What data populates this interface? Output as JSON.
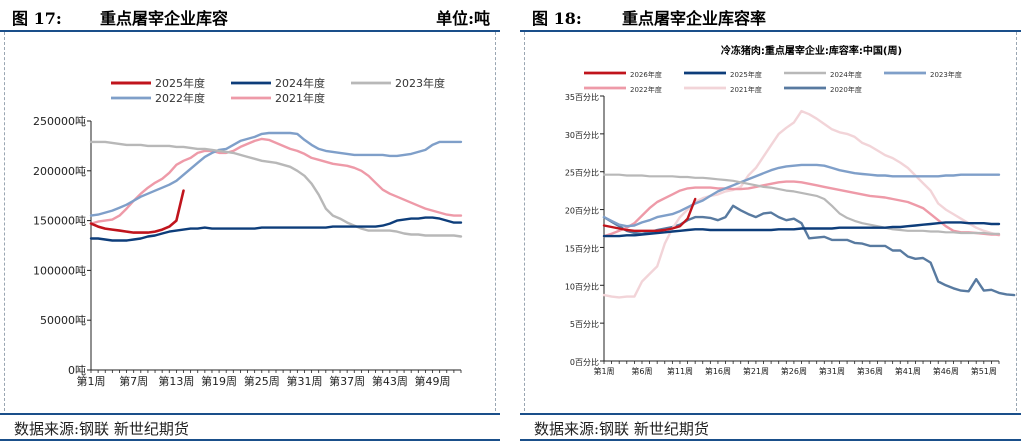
{
  "left": {
    "fig_no": "图 17:",
    "fig_title": "重点屠宰企业库容",
    "unit": "单位:吨",
    "source": "数据来源:钢联 新世纪期货"
  },
  "right": {
    "fig_no": "图 18:",
    "fig_title": "重点屠宰企业库容率",
    "source": "数据来源:钢联 新世纪期货"
  },
  "colors": {
    "header_rule": "#1a4f8a",
    "2026": "#c0141c",
    "2025_right": "#0d3d7a",
    "2024_right": "#b8b8b8",
    "2023_right": "#7f9fc9",
    "2022_right": "#ee9aa8",
    "2021_right": "#f2d4d8",
    "2020_right": "#587aa0",
    "2025_left": "#c0141c",
    "2024_left": "#0d3d7a",
    "2023_left": "#b8b8b8",
    "2022_left": "#7f9fc9",
    "2021_left": "#ee9aa8"
  },
  "chart_data": [
    {
      "type": "line",
      "title": "",
      "ylabel": "吨",
      "ylim": [
        0,
        250000
      ],
      "yticks": [
        0,
        50000,
        100000,
        150000,
        200000,
        250000
      ],
      "ytick_labels": [
        "0吨",
        "50000吨",
        "100000吨",
        "150000吨",
        "200000吨",
        "250000吨"
      ],
      "xlim": [
        1,
        53
      ],
      "xticks": [
        1,
        7,
        13,
        19,
        25,
        31,
        37,
        43,
        49
      ],
      "xtick_labels": [
        "第1周",
        "第7周",
        "第13周",
        "第19周",
        "第25周",
        "第31周",
        "第37周",
        "第43周",
        "第49周"
      ],
      "series": [
        {
          "name": "2025年度",
          "color_key": "2025_left",
          "width": 2.6,
          "start_week": 1,
          "values": [
            147000,
            144000,
            142000,
            141000,
            140000,
            139000,
            138000,
            138000,
            138000,
            139000,
            141000,
            144000,
            150000,
            180000
          ]
        },
        {
          "name": "2024年度",
          "color_key": "2024_left",
          "width": 2.4,
          "start_week": 1,
          "values": [
            132000,
            132000,
            131000,
            130000,
            130000,
            130000,
            131000,
            132000,
            134000,
            135000,
            137000,
            139000,
            140000,
            141000,
            142000,
            142000,
            143000,
            142000,
            142000,
            142000,
            142000,
            142000,
            142000,
            142000,
            143000,
            143000,
            143000,
            143000,
            143000,
            143000,
            143000,
            143000,
            143000,
            143000,
            144000,
            144000,
            144000,
            144000,
            144000,
            144000,
            144000,
            145000,
            147000,
            150000,
            151000,
            152000,
            152000,
            153000,
            153000,
            152000,
            150000,
            148000,
            148000
          ]
        },
        {
          "name": "2023年度",
          "color_key": "2023_left",
          "width": 2.4,
          "start_week": 1,
          "values": [
            229000,
            229000,
            229000,
            228000,
            227000,
            226000,
            226000,
            226000,
            225000,
            225000,
            225000,
            225000,
            224000,
            224000,
            223000,
            222000,
            222000,
            221000,
            220000,
            219000,
            218000,
            216000,
            214000,
            212000,
            210000,
            209000,
            208000,
            206000,
            204000,
            200000,
            195000,
            187000,
            176000,
            162000,
            155000,
            152000,
            148000,
            145000,
            142000,
            140000,
            140000,
            140000,
            140000,
            139000,
            137000,
            136000,
            136000,
            135000,
            135000,
            135000,
            135000,
            135000,
            134000
          ]
        },
        {
          "name": "2022年度",
          "color_key": "2022_left",
          "width": 2.4,
          "start_week": 1,
          "values": [
            155000,
            156000,
            158000,
            160000,
            163000,
            166000,
            170000,
            174000,
            177000,
            180000,
            183000,
            186000,
            190000,
            196000,
            202000,
            208000,
            214000,
            218000,
            221000,
            222000,
            226000,
            230000,
            232000,
            234000,
            237000,
            238000,
            238000,
            238000,
            238000,
            237000,
            231000,
            226000,
            222000,
            220000,
            219000,
            218000,
            217000,
            216000,
            216000,
            216000,
            216000,
            216000,
            215000,
            215000,
            216000,
            217000,
            219000,
            221000,
            226000,
            229000,
            229000,
            229000,
            229000
          ]
        },
        {
          "name": "2021年度",
          "color_key": "2021_left",
          "width": 2.4,
          "start_week": 1,
          "values": [
            147000,
            149000,
            150000,
            151000,
            155000,
            162000,
            170000,
            177000,
            183000,
            188000,
            192000,
            198000,
            206000,
            210000,
            213000,
            218000,
            220000,
            220000,
            218000,
            218000,
            220000,
            224000,
            227000,
            230000,
            232000,
            231000,
            228000,
            225000,
            222000,
            220000,
            217000,
            213000,
            211000,
            209000,
            207000,
            206000,
            205000,
            203000,
            200000,
            195000,
            188000,
            181000,
            177000,
            174000,
            171000,
            168000,
            165000,
            162000,
            160000,
            158000,
            156000,
            155000,
            155000
          ]
        }
      ],
      "legend": {
        "rows": [
          [
            "2025年度",
            "2024年度",
            "2023年度"
          ],
          [
            "2022年度",
            "2021年度"
          ]
        ],
        "placement": "top"
      }
    },
    {
      "type": "line",
      "title": "冷冻猪肉:重点屠宰企业:库容率:中国(周)",
      "ylabel": "百分比",
      "ylim": [
        0,
        35
      ],
      "yticks": [
        0,
        5,
        10,
        15,
        20,
        25,
        30,
        35
      ],
      "ytick_labels": [
        "0百分比",
        "5百分比",
        "10百分比",
        "15百分比",
        "20百分比",
        "25百分比",
        "30百分比",
        "35百分比"
      ],
      "xlim": [
        1,
        53
      ],
      "xticks": [
        1,
        6,
        11,
        16,
        21,
        26,
        31,
        36,
        41,
        46,
        51
      ],
      "xtick_labels": [
        "第1周",
        "第6周",
        "第11周",
        "第16周",
        "第21周",
        "第26周",
        "第31周",
        "第36周",
        "第41周",
        "第46周",
        "第51周"
      ],
      "series": [
        {
          "name": "2026年度",
          "color_key": "2026",
          "width": 2.4,
          "start_week": 1,
          "values": [
            17.9,
            17.7,
            17.5,
            17.3,
            17.2,
            17.2,
            17.2,
            17.2,
            17.3,
            17.5,
            17.8,
            18.8,
            21.4
          ]
        },
        {
          "name": "2025年度",
          "color_key": "2025_right",
          "width": 2.4,
          "start_week": 1,
          "values": [
            16.5,
            16.5,
            16.5,
            16.6,
            16.6,
            16.7,
            16.8,
            16.9,
            17.0,
            17.1,
            17.2,
            17.3,
            17.4,
            17.4,
            17.3,
            17.3,
            17.3,
            17.3,
            17.3,
            17.3,
            17.3,
            17.3,
            17.3,
            17.4,
            17.4,
            17.4,
            17.5,
            17.5,
            17.5,
            17.5,
            17.5,
            17.6,
            17.6,
            17.6,
            17.6,
            17.6,
            17.6,
            17.6,
            17.7,
            17.7,
            17.8,
            17.9,
            18.0,
            18.1,
            18.2,
            18.3,
            18.3,
            18.3,
            18.2,
            18.2,
            18.2,
            18.1,
            18.1
          ]
        },
        {
          "name": "2024年度",
          "color_key": "2024_right",
          "width": 2.2,
          "start_week": 1,
          "values": [
            24.6,
            24.6,
            24.6,
            24.5,
            24.5,
            24.5,
            24.4,
            24.4,
            24.4,
            24.4,
            24.3,
            24.3,
            24.2,
            24.2,
            24.1,
            24.0,
            23.9,
            23.8,
            23.6,
            23.4,
            23.2,
            23.0,
            22.9,
            22.7,
            22.5,
            22.4,
            22.2,
            22.0,
            21.8,
            21.4,
            20.5,
            19.5,
            18.9,
            18.5,
            18.2,
            18.0,
            17.8,
            17.6,
            17.4,
            17.3,
            17.2,
            17.2,
            17.2,
            17.1,
            17.1,
            17.0,
            17.0,
            16.9,
            16.9,
            16.9,
            16.9,
            16.8,
            16.8
          ]
        },
        {
          "name": "2023年度",
          "color_key": "2023_right",
          "width": 2.4,
          "start_week": 1,
          "values": [
            19.0,
            18.5,
            18.0,
            17.8,
            17.9,
            18.3,
            18.6,
            19.0,
            19.2,
            19.4,
            19.8,
            20.3,
            20.8,
            21.2,
            21.8,
            22.4,
            22.8,
            23.2,
            23.6,
            24.0,
            24.4,
            24.8,
            25.2,
            25.5,
            25.7,
            25.8,
            25.9,
            25.9,
            25.9,
            25.8,
            25.5,
            25.2,
            25.0,
            24.8,
            24.7,
            24.6,
            24.5,
            24.5,
            24.4,
            24.4,
            24.4,
            24.4,
            24.4,
            24.4,
            24.4,
            24.5,
            24.5,
            24.6,
            24.6,
            24.6,
            24.6,
            24.6,
            24.6
          ]
        },
        {
          "name": "2022年度",
          "color_key": "2022_right",
          "width": 2.4,
          "start_week": 1,
          "values": [
            16.5,
            16.8,
            17.2,
            17.6,
            18.2,
            19.2,
            20.2,
            21.0,
            21.5,
            22.0,
            22.5,
            22.8,
            22.9,
            22.9,
            22.9,
            22.8,
            22.8,
            22.7,
            22.7,
            22.8,
            23.0,
            23.2,
            23.4,
            23.6,
            23.7,
            23.7,
            23.6,
            23.4,
            23.2,
            23.0,
            22.8,
            22.6,
            22.4,
            22.2,
            22.0,
            21.8,
            21.7,
            21.6,
            21.4,
            21.2,
            21.0,
            20.6,
            20.2,
            19.4,
            18.6,
            17.8,
            17.2,
            17.0,
            17.0,
            16.9,
            16.8,
            16.7,
            16.7
          ]
        },
        {
          "name": "2021年度",
          "color_key": "2021_right",
          "width": 2.4,
          "start_week": 1,
          "values": [
            8.7,
            8.5,
            8.4,
            8.5,
            8.5,
            10.5,
            11.5,
            12.5,
            15.5,
            17.5,
            19.0,
            20.0,
            21.0,
            21.5,
            21.8,
            22.0,
            22.4,
            22.6,
            23.0,
            24.5,
            25.5,
            27.0,
            28.5,
            30.0,
            30.8,
            31.5,
            33.0,
            32.6,
            32.0,
            31.3,
            30.6,
            30.2,
            30.0,
            29.6,
            28.8,
            28.4,
            27.8,
            27.2,
            26.8,
            26.2,
            25.5,
            24.5,
            23.5,
            22.5,
            20.8,
            20.0,
            19.4,
            18.8,
            18.2,
            17.6,
            17.2,
            16.9,
            16.6
          ]
        },
        {
          "name": "2020年度",
          "color_key": "2020_right",
          "width": 2.4,
          "start_week": 1,
          "values": [
            19.0,
            18.4,
            17.8,
            17.2,
            16.9,
            16.8,
            17.0,
            17.3,
            17.5,
            17.7,
            18.0,
            18.6,
            19.0,
            19.0,
            18.9,
            18.6,
            19.0,
            20.5,
            19.9,
            19.4,
            19.0,
            19.5,
            19.6,
            19.0,
            18.6,
            18.8,
            18.2,
            16.2,
            16.3,
            16.4,
            16.0,
            16.0,
            16.0,
            15.6,
            15.5,
            15.2,
            15.2,
            15.2,
            14.6,
            14.6,
            13.8,
            13.5,
            13.6,
            13.0,
            10.5,
            10.0,
            9.6,
            9.3,
            9.2,
            10.8,
            9.3,
            9.4,
            9.0,
            8.8,
            8.7
          ]
        }
      ],
      "legend": {
        "rows": [
          [
            "2026年度",
            "2025年度",
            "2024年度",
            "2023年度"
          ],
          [
            "2022年度",
            "2021年度",
            "2020年度"
          ]
        ],
        "placement": "top"
      }
    }
  ]
}
